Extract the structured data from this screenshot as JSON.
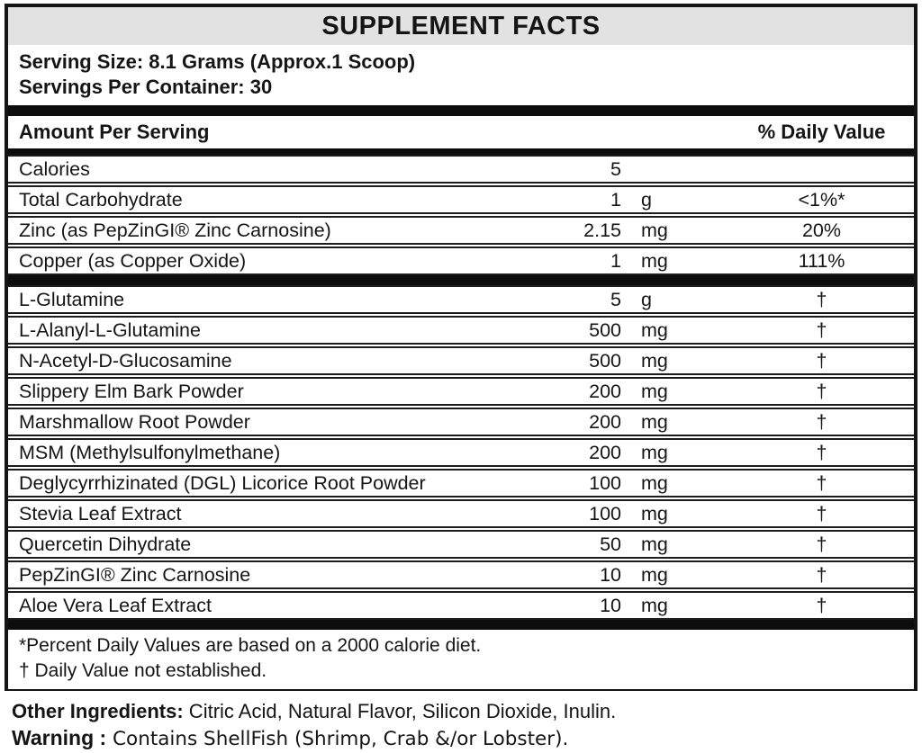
{
  "label": {
    "title": "SUPPLEMENT FACTS",
    "serving_size": "Serving Size: 8.1 Grams (Approx.1 Scoop)",
    "servings_per_container": "Servings Per Container: 30",
    "columns": {
      "amount_header": "Amount Per Serving",
      "daily_value_header": "% Daily Value"
    },
    "nutrients": [
      {
        "name": "Calories",
        "amount": "5",
        "unit": "",
        "dv": ""
      },
      {
        "name": "Total Carbohydrate",
        "amount": "1",
        "unit": "g",
        "dv": "<1%*"
      },
      {
        "name": "Zinc (as PepZinGI® Zinc Carnosine)",
        "amount": "2.15",
        "unit": "mg",
        "dv": "20%"
      },
      {
        "name": "Copper (as Copper Oxide)",
        "amount": "1",
        "unit": "mg",
        "dv": "111%"
      }
    ],
    "ingredients": [
      {
        "name": "L-Glutamine",
        "amount": "5",
        "unit": "g",
        "dv": "†"
      },
      {
        "name": "L-Alanyl-L-Glutamine",
        "amount": "500",
        "unit": "mg",
        "dv": "†"
      },
      {
        "name": "N-Acetyl-D-Glucosamine",
        "amount": "500",
        "unit": "mg",
        "dv": "†"
      },
      {
        "name": "Slippery Elm Bark Powder",
        "amount": "200",
        "unit": "mg",
        "dv": "†"
      },
      {
        "name": "Marshmallow Root Powder",
        "amount": "200",
        "unit": "mg",
        "dv": "†"
      },
      {
        "name": "MSM (Methylsulfonylmethane)",
        "amount": "200",
        "unit": "mg",
        "dv": "†"
      },
      {
        "name": "Deglycyrrhizinated (DGL) Licorice Root Powder",
        "amount": "100",
        "unit": "mg",
        "dv": "†"
      },
      {
        "name": "Stevia Leaf Extract",
        "amount": "100",
        "unit": "mg",
        "dv": "†"
      },
      {
        "name": "Quercetin Dihydrate",
        "amount": "50",
        "unit": "mg",
        "dv": "†"
      },
      {
        "name": "PepZinGI® Zinc Carnosine",
        "amount": "10",
        "unit": "mg",
        "dv": "†"
      },
      {
        "name": "Aloe Vera Leaf Extract",
        "amount": "10",
        "unit": "mg",
        "dv": "†"
      }
    ],
    "footnotes": [
      "*Percent Daily Values are based on a 2000 calorie diet.",
      "† Daily Value not established."
    ],
    "other_ingredients_label": "Other Ingredients:",
    "other_ingredients": " Citric Acid, Natural Flavor, Silicon Dioxide, Inulin.",
    "warning_label": "Warning :",
    "warning": " Contains ShellFish (Shrimp, Crab &/or Lobster).",
    "colors": {
      "header_band": "#e2e2e2",
      "separator_bar": "#0d0d0d",
      "border": "#141414",
      "text": "#151515"
    }
  }
}
